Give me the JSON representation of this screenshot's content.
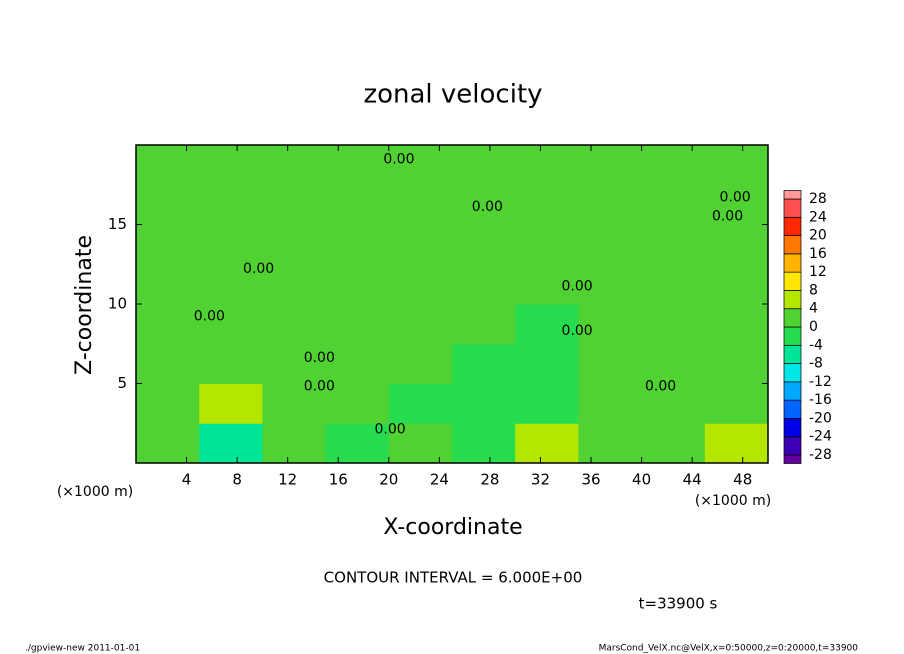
{
  "chart_data": {
    "type": "contour",
    "title": "zonal velocity",
    "xlabel": "X-coordinate",
    "ylabel": "Z-coordinate",
    "x_unit_label": "(×1000 m)",
    "y_unit_label": "(×1000 m)",
    "contour_interval_text": "CONTOUR INTERVAL = 6.000E+00",
    "time_text": "t=33900 s",
    "footer_left": "./gpview-new  2011-01-01",
    "footer_right": "MarsCond_VelX.nc@VelX,x=0:50000,z=0:20000,t=33900",
    "xlim": [
      0,
      50
    ],
    "ylim": [
      0,
      20
    ],
    "xticks": [
      4,
      8,
      12,
      16,
      20,
      24,
      28,
      32,
      36,
      40,
      44,
      48
    ],
    "yticks": [
      5,
      10,
      15
    ],
    "field": {
      "x": [
        2.5,
        7.5,
        12.5,
        17.5,
        22.5,
        27.5,
        32.5,
        37.5,
        42.5,
        47.5
      ],
      "y": [
        1.25,
        3.75,
        6.25,
        8.75,
        11.25,
        13.75,
        16.25,
        18.75
      ],
      "z": [
        [
          2,
          -5,
          1,
          -1,
          2,
          -1,
          6,
          2,
          3,
          4
        ],
        [
          3,
          5,
          2,
          0,
          -2,
          -3,
          -2,
          3,
          2,
          3
        ],
        [
          2,
          2,
          1,
          1,
          0,
          -2,
          -1,
          1,
          2,
          1
        ],
        [
          1,
          1,
          1,
          1,
          0,
          0,
          -1,
          1,
          1,
          1
        ],
        [
          1,
          1,
          2,
          1,
          1,
          1,
          1,
          1,
          1,
          1
        ],
        [
          1,
          1,
          1,
          1,
          1,
          1,
          1,
          1,
          1,
          1
        ],
        [
          1,
          1,
          1,
          1,
          1,
          0,
          1,
          1,
          1,
          1
        ],
        [
          1,
          1,
          1,
          1,
          1,
          1,
          1,
          1,
          1,
          1
        ]
      ]
    },
    "colorbar": {
      "levels": [
        -28,
        -24,
        -20,
        -16,
        -12,
        -8,
        -4,
        0,
        4,
        8,
        12,
        16,
        20,
        24,
        28
      ],
      "colors": [
        "#6400a0",
        "#3c00b4",
        "#0000e6",
        "#0064ff",
        "#00aaff",
        "#00e6e6",
        "#00e696",
        "#28dc50",
        "#50d232",
        "#b4e600",
        "#ffe600",
        "#ffb400",
        "#ff7800",
        "#ff2800",
        "#ff5050",
        "#ff9999"
      ]
    },
    "contour_labels": [
      {
        "label": "0.00",
        "x": 20.8,
        "y": 19.1
      },
      {
        "label": "0.00",
        "x": 27.8,
        "y": 16.1
      },
      {
        "label": "0.00",
        "x": 47.4,
        "y": 16.7
      },
      {
        "label": "0.00",
        "x": 46.8,
        "y": 15.5
      },
      {
        "label": "0.00",
        "x": 9.7,
        "y": 12.2
      },
      {
        "label": "0.00",
        "x": 34.9,
        "y": 11.1
      },
      {
        "label": "0.00",
        "x": 5.8,
        "y": 9.2
      },
      {
        "label": "0.00",
        "x": 34.9,
        "y": 8.3
      },
      {
        "label": "0.00",
        "x": 14.5,
        "y": 6.6
      },
      {
        "label": "0.00",
        "x": 14.5,
        "y": 4.8
      },
      {
        "label": "0.00",
        "x": 41.5,
        "y": 4.8
      },
      {
        "label": "0.00",
        "x": 20.1,
        "y": 2.1
      }
    ]
  }
}
